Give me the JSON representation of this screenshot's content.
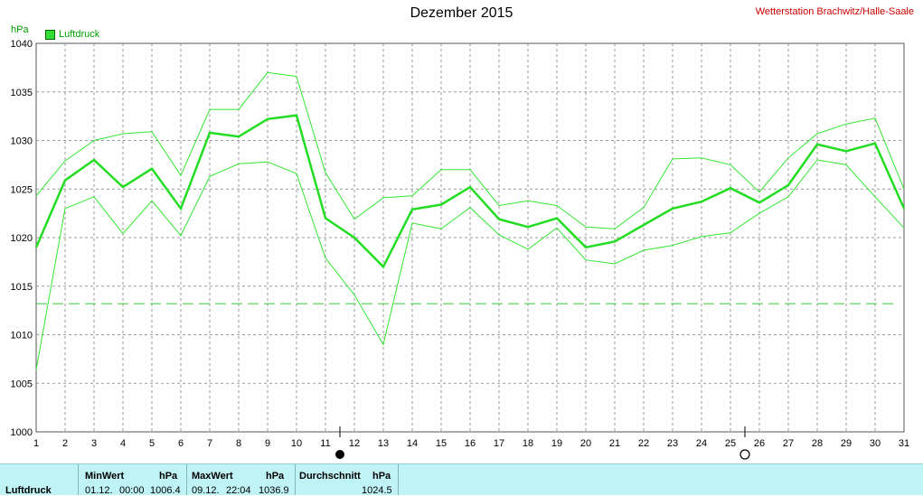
{
  "chart_data": {
    "type": "line",
    "title": "Dezember 2015",
    "subtitle": "Wetterstation Brachwitz/Halle-Saale",
    "ylabel": "hPa",
    "legend": [
      "Luftdruck"
    ],
    "ylim": [
      1000,
      1040
    ],
    "yticks": [
      1000,
      1005,
      1010,
      1015,
      1020,
      1025,
      1030,
      1035,
      1040
    ],
    "x": [
      1,
      2,
      3,
      4,
      5,
      6,
      7,
      8,
      9,
      10,
      11,
      12,
      13,
      14,
      15,
      16,
      17,
      18,
      19,
      20,
      21,
      22,
      23,
      24,
      25,
      26,
      27,
      28,
      29,
      30,
      31
    ],
    "grid": true,
    "reference_line": 1013.2,
    "series": [
      {
        "name": "Luftdruck",
        "values": [
          1019.0,
          1025.9,
          1028.0,
          1025.2,
          1027.1,
          1023.0,
          1030.8,
          1030.4,
          1032.2,
          1032.6,
          1022.0,
          1020.0,
          1017.0,
          1022.9,
          1023.4,
          1025.2,
          1021.9,
          1021.1,
          1022.0,
          1019.0,
          1019.6,
          1021.3,
          1023.0,
          1023.7,
          1025.1,
          1023.6,
          1025.4,
          1029.6,
          1028.9,
          1029.7,
          1023.0
        ]
      },
      {
        "values": [
          1024.3,
          1027.9,
          1030.0,
          1030.7,
          1030.9,
          1026.4,
          1033.2,
          1033.2,
          1037.0,
          1036.6,
          1026.7,
          1021.9,
          1024.1,
          1024.3,
          1027.0,
          1027.0,
          1023.3,
          1023.8,
          1023.3,
          1021.1,
          1020.9,
          1023.1,
          1028.1,
          1028.2,
          1027.5,
          1024.7,
          1028.2,
          1030.7,
          1031.7,
          1032.3,
          1025.0
        ]
      },
      {
        "values": [
          1006.4,
          1023.0,
          1024.2,
          1020.4,
          1023.8,
          1020.2,
          1026.3,
          1027.6,
          1027.8,
          1026.6,
          1017.9,
          1014.1,
          1009.0,
          1021.5,
          1020.9,
          1023.1,
          1020.3,
          1018.8,
          1021.0,
          1017.7,
          1017.3,
          1018.7,
          1019.2,
          1020.1,
          1020.5,
          1022.5,
          1024.2,
          1028.0,
          1027.5,
          1024.2,
          1021.0
        ]
      }
    ],
    "moon_phases": [
      {
        "day": 11.5,
        "symbol": "new-moon"
      },
      {
        "day": 25.5,
        "symbol": "full-moon"
      }
    ]
  },
  "footer": {
    "row_label": "Luftdruck",
    "min": {
      "header": "MinWert",
      "unit": "hPa",
      "date": "01.12.",
      "time": "00:00",
      "value": "1006.4"
    },
    "max": {
      "header": "MaxWert",
      "unit": "hPa",
      "date": "09.12.",
      "time": "22:04",
      "value": "1036.9"
    },
    "avg": {
      "header": "Durchschnitt",
      "unit": "hPa",
      "value": "1024.5"
    }
  },
  "colors": {
    "main_line": "#22dd22",
    "envelope": "#33e633",
    "grid": "#999999",
    "reference": "#33cc33",
    "station_text": "#cc0000",
    "footer_bg": "#bff3f5"
  }
}
